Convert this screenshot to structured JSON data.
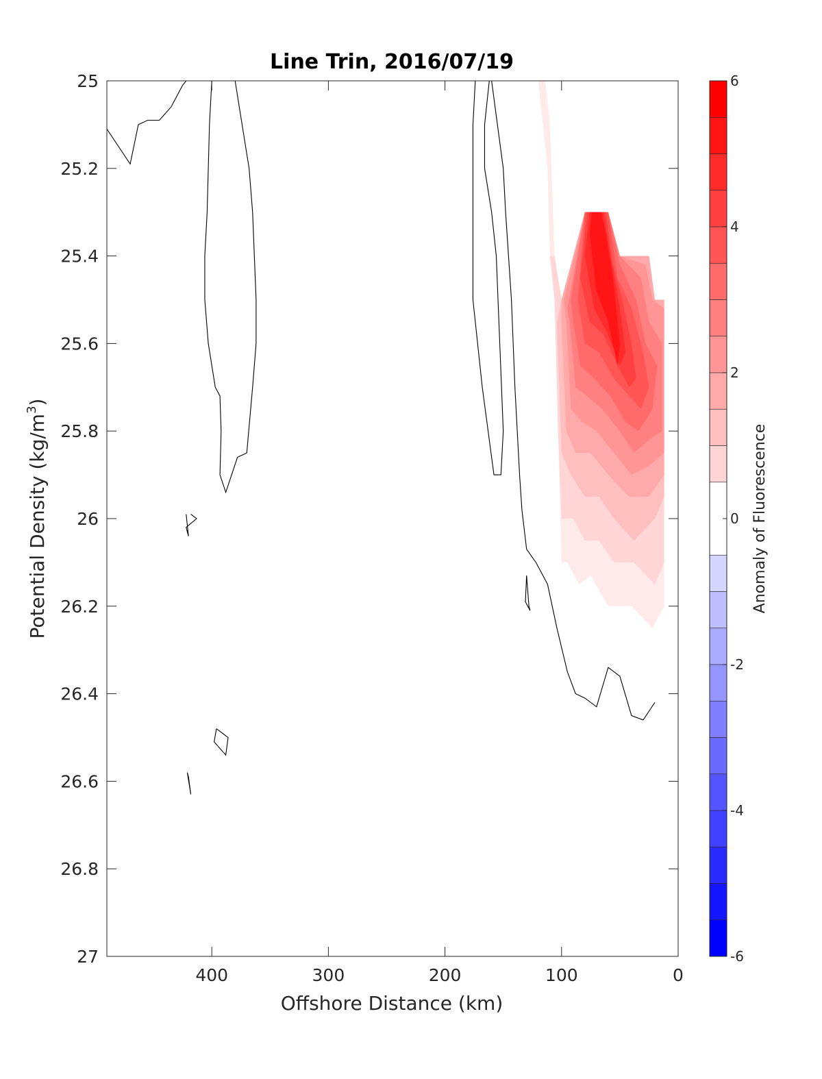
{
  "chart_data": {
    "type": "contour",
    "title": "Line Trin, 2016/07/19",
    "xlabel": "Offshore Distance (km)",
    "ylabel_main": "Potential Density (kg/m",
    "ylabel_sup": "3",
    "ylabel_tail": ")",
    "xlim": [
      490,
      0
    ],
    "ylim": [
      25,
      27
    ],
    "x_reversed": true,
    "y_reversed": true,
    "x_ticks": [
      {
        "value": 400,
        "label": "400"
      },
      {
        "value": 300,
        "label": "300"
      },
      {
        "value": 200,
        "label": "200"
      },
      {
        "value": 100,
        "label": "100"
      },
      {
        "value": 0,
        "label": "0"
      }
    ],
    "y_ticks": [
      {
        "value": 25.0,
        "label": "25"
      },
      {
        "value": 25.2,
        "label": "25.2"
      },
      {
        "value": 25.4,
        "label": "25.4"
      },
      {
        "value": 25.6,
        "label": "25.6"
      },
      {
        "value": 25.8,
        "label": "25.8"
      },
      {
        "value": 26.0,
        "label": "26"
      },
      {
        "value": 26.2,
        "label": "26.2"
      },
      {
        "value": 26.4,
        "label": "26.4"
      },
      {
        "value": 26.6,
        "label": "26.6"
      },
      {
        "value": 26.8,
        "label": "26.8"
      },
      {
        "value": 27.0,
        "label": "27"
      }
    ],
    "colorbar": {
      "label": "Anomaly of Fluorescence",
      "range": [
        -6,
        6
      ],
      "levels": [
        -6,
        -5.5,
        -5,
        -4.5,
        -4,
        -3.5,
        -3,
        -2.5,
        -2,
        -1.5,
        -1,
        -0.5,
        0.5,
        1,
        1.5,
        2,
        2.5,
        3,
        3.5,
        4,
        4.5,
        5,
        5.5,
        6
      ],
      "ticks": [
        {
          "value": 6,
          "label": "6"
        },
        {
          "value": 4,
          "label": "4"
        },
        {
          "value": 2,
          "label": "2"
        },
        {
          "value": 0,
          "label": "0"
        },
        {
          "value": -2,
          "label": "-2"
        },
        {
          "value": -4,
          "label": "-4"
        },
        {
          "value": -6,
          "label": "-6"
        }
      ],
      "negative_color": "#0000ff",
      "positive_color": "#ff0000"
    },
    "filled_regions": [
      {
        "level": 0.5,
        "points": [
          [
            120,
            25.0
          ],
          [
            114,
            25.0
          ],
          [
            110,
            25.1
          ],
          [
            106,
            25.4
          ],
          [
            103,
            25.8
          ],
          [
            100,
            26.1
          ],
          [
            95,
            26.1
          ],
          [
            85,
            26.15
          ],
          [
            75,
            26.13
          ],
          [
            60,
            26.2
          ],
          [
            40,
            26.2
          ],
          [
            22,
            26.25
          ],
          [
            12,
            26.2
          ],
          [
            12,
            25.5
          ],
          [
            20,
            25.5
          ],
          [
            25,
            25.4
          ],
          [
            50,
            25.4
          ],
          [
            60,
            25.3
          ],
          [
            80,
            25.3
          ],
          [
            100,
            25.5
          ],
          [
            106,
            25.4
          ],
          [
            110,
            25.4
          ],
          [
            112,
            25.2
          ],
          [
            116,
            25.1
          ]
        ]
      },
      {
        "level": 1.0,
        "points": [
          [
            110,
            25.4
          ],
          [
            106,
            25.5
          ],
          [
            103,
            25.8
          ],
          [
            100,
            26.0
          ],
          [
            90,
            26.0
          ],
          [
            80,
            26.05
          ],
          [
            68,
            26.05
          ],
          [
            55,
            26.1
          ],
          [
            38,
            26.1
          ],
          [
            20,
            26.15
          ],
          [
            12,
            26.1
          ],
          [
            12,
            25.5
          ],
          [
            20,
            25.5
          ],
          [
            25,
            25.4
          ],
          [
            50,
            25.4
          ],
          [
            60,
            25.3
          ],
          [
            80,
            25.3
          ],
          [
            100,
            25.5
          ],
          [
            106,
            25.4
          ]
        ]
      },
      {
        "level": 1.5,
        "points": [
          [
            104,
            25.55
          ],
          [
            100,
            25.85
          ],
          [
            92,
            25.9
          ],
          [
            80,
            25.95
          ],
          [
            68,
            25.95
          ],
          [
            55,
            26.0
          ],
          [
            38,
            26.05
          ],
          [
            20,
            26.0
          ],
          [
            12,
            25.95
          ],
          [
            12,
            25.5
          ],
          [
            20,
            25.5
          ],
          [
            25,
            25.4
          ],
          [
            50,
            25.4
          ],
          [
            60,
            25.3
          ],
          [
            80,
            25.3
          ],
          [
            100,
            25.5
          ]
        ]
      },
      {
        "level": 2.0,
        "points": [
          [
            100,
            25.55
          ],
          [
            96,
            25.8
          ],
          [
            88,
            25.85
          ],
          [
            75,
            25.85
          ],
          [
            60,
            25.9
          ],
          [
            42,
            25.95
          ],
          [
            25,
            25.95
          ],
          [
            12,
            25.9
          ],
          [
            12,
            25.5
          ],
          [
            20,
            25.5
          ],
          [
            25,
            25.4
          ],
          [
            50,
            25.4
          ],
          [
            60,
            25.3
          ],
          [
            80,
            25.3
          ],
          [
            100,
            25.5
          ]
        ]
      },
      {
        "level": 2.5,
        "points": [
          [
            96,
            25.55
          ],
          [
            92,
            25.75
          ],
          [
            82,
            25.78
          ],
          [
            70,
            25.8
          ],
          [
            55,
            25.85
          ],
          [
            40,
            25.9
          ],
          [
            25,
            25.88
          ],
          [
            12,
            25.85
          ],
          [
            12,
            25.52
          ],
          [
            22,
            25.5
          ],
          [
            28,
            25.42
          ],
          [
            50,
            25.4
          ],
          [
            60,
            25.3
          ],
          [
            80,
            25.3
          ],
          [
            98,
            25.5
          ]
        ]
      },
      {
        "level": 3.0,
        "points": [
          [
            93,
            25.55
          ],
          [
            88,
            25.7
          ],
          [
            78,
            25.72
          ],
          [
            65,
            25.75
          ],
          [
            50,
            25.8
          ],
          [
            38,
            25.85
          ],
          [
            25,
            25.82
          ],
          [
            14,
            25.8
          ],
          [
            14,
            25.6
          ],
          [
            25,
            25.55
          ],
          [
            32,
            25.45
          ],
          [
            50,
            25.4
          ],
          [
            60,
            25.3
          ],
          [
            80,
            25.3
          ],
          [
            95,
            25.52
          ]
        ]
      },
      {
        "level": 3.5,
        "points": [
          [
            90,
            25.55
          ],
          [
            84,
            25.65
          ],
          [
            72,
            25.68
          ],
          [
            58,
            25.72
          ],
          [
            45,
            25.78
          ],
          [
            34,
            25.8
          ],
          [
            22,
            25.75
          ],
          [
            18,
            25.65
          ],
          [
            28,
            25.6
          ],
          [
            36,
            25.5
          ],
          [
            50,
            25.42
          ],
          [
            60,
            25.3
          ],
          [
            80,
            25.3
          ],
          [
            92,
            25.5
          ]
        ]
      },
      {
        "level": 4.0,
        "points": [
          [
            86,
            25.5
          ],
          [
            80,
            25.6
          ],
          [
            68,
            25.62
          ],
          [
            55,
            25.68
          ],
          [
            42,
            25.72
          ],
          [
            32,
            25.75
          ],
          [
            25,
            25.7
          ],
          [
            30,
            25.62
          ],
          [
            40,
            25.52
          ],
          [
            52,
            25.45
          ],
          [
            60,
            25.3
          ],
          [
            80,
            25.3
          ]
        ]
      },
      {
        "level": 4.5,
        "points": [
          [
            84,
            25.45
          ],
          [
            76,
            25.55
          ],
          [
            64,
            25.58
          ],
          [
            52,
            25.65
          ],
          [
            42,
            25.7
          ],
          [
            36,
            25.68
          ],
          [
            40,
            25.6
          ],
          [
            48,
            25.5
          ],
          [
            56,
            25.42
          ],
          [
            62,
            25.3
          ],
          [
            78,
            25.3
          ]
        ]
      },
      {
        "level": 5.0,
        "points": [
          [
            80,
            25.4
          ],
          [
            72,
            25.52
          ],
          [
            60,
            25.58
          ],
          [
            50,
            25.65
          ],
          [
            45,
            25.62
          ],
          [
            50,
            25.52
          ],
          [
            58,
            25.4
          ],
          [
            64,
            25.3
          ],
          [
            76,
            25.3
          ]
        ]
      },
      {
        "level": 5.5,
        "points": [
          [
            76,
            25.35
          ],
          [
            70,
            25.48
          ],
          [
            60,
            25.55
          ],
          [
            52,
            25.65
          ],
          [
            50,
            25.6
          ],
          [
            56,
            25.45
          ],
          [
            62,
            25.35
          ],
          [
            66,
            25.3
          ],
          [
            74,
            25.3
          ]
        ]
      }
    ],
    "zero_contours": [
      [
        [
          490,
          25.11
        ],
        [
          470,
          25.19
        ],
        [
          463,
          25.1
        ],
        [
          455,
          25.09
        ],
        [
          445,
          25.09
        ],
        [
          435,
          25.06
        ],
        [
          425,
          25.01
        ],
        [
          422,
          25.0
        ]
      ],
      [
        [
          400,
          25.0
        ],
        [
          402,
          25.1
        ],
        [
          404,
          25.3
        ],
        [
          406,
          25.4
        ],
        [
          406,
          25.5
        ],
        [
          403,
          25.6
        ],
        [
          397,
          25.7
        ],
        [
          393,
          25.72
        ],
        [
          392,
          25.8
        ],
        [
          393,
          25.9
        ],
        [
          388,
          25.94
        ],
        [
          378,
          25.86
        ],
        [
          370,
          25.85
        ],
        [
          365,
          25.7
        ],
        [
          362,
          25.6
        ],
        [
          362,
          25.5
        ],
        [
          365,
          25.3
        ],
        [
          368,
          25.2
        ],
        [
          374,
          25.1
        ],
        [
          380,
          25.0
        ]
      ],
      [
        [
          174,
          25.0
        ],
        [
          176,
          25.1
        ],
        [
          176,
          25.3
        ],
        [
          176,
          25.5
        ],
        [
          172,
          25.6
        ],
        [
          168,
          25.7
        ],
        [
          163,
          25.8
        ],
        [
          158,
          25.9
        ],
        [
          152,
          25.9
        ],
        [
          150,
          25.8
        ],
        [
          153,
          25.6
        ],
        [
          156,
          25.4
        ],
        [
          160,
          25.3
        ],
        [
          166,
          25.2
        ],
        [
          166,
          25.1
        ],
        [
          162,
          25.0
        ]
      ],
      [
        [
          160,
          25.0
        ],
        [
          155,
          25.1
        ],
        [
          150,
          25.2
        ],
        [
          148,
          25.3
        ],
        [
          143,
          25.5
        ],
        [
          140,
          25.7
        ],
        [
          136,
          25.9
        ],
        [
          134,
          25.98
        ],
        [
          130,
          26.07
        ],
        [
          122,
          26.1
        ],
        [
          112,
          26.15
        ],
        [
          104,
          26.25
        ],
        [
          95,
          26.35
        ],
        [
          88,
          26.4
        ],
        [
          80,
          26.41
        ],
        [
          70,
          26.43
        ],
        [
          60,
          26.34
        ],
        [
          50,
          26.36
        ],
        [
          40,
          26.45
        ],
        [
          30,
          26.46
        ],
        [
          20,
          26.42
        ]
      ],
      [
        [
          418,
          25.99
        ],
        [
          413,
          26.0
        ],
        [
          422,
          26.02
        ],
        [
          420,
          26.04
        ],
        [
          422,
          25.99
        ]
      ],
      [
        [
          130,
          26.13
        ],
        [
          128,
          26.2
        ],
        [
          127,
          26.21
        ],
        [
          131,
          26.19
        ],
        [
          130,
          26.13
        ]
      ],
      [
        [
          396,
          26.48
        ],
        [
          386,
          26.5
        ],
        [
          388,
          26.54
        ],
        [
          398,
          26.51
        ],
        [
          396,
          26.48
        ]
      ],
      [
        [
          421,
          26.58
        ],
        [
          418,
          26.63
        ],
        [
          420,
          26.59
        ],
        [
          421,
          26.58
        ]
      ]
    ]
  }
}
